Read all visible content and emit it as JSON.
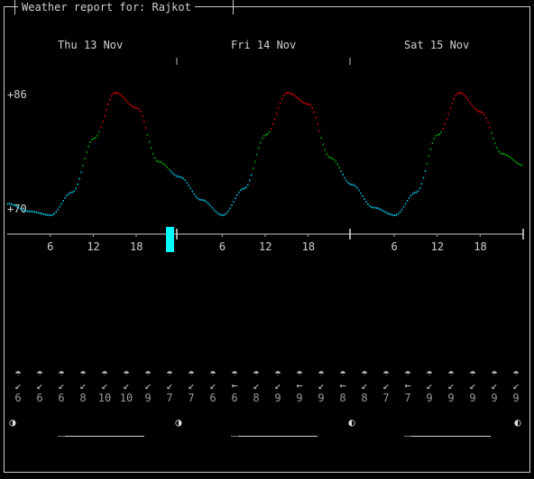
{
  "title": "Weather report for: Rajkot",
  "days": [
    "Thu 13 Nov",
    "Fri 14 Nov",
    "Sat 15 Nov"
  ],
  "temp_labels": {
    "max": "+86",
    "min": "+70"
  },
  "hour_ticks": [
    "6",
    "12",
    "18",
    "6",
    "12",
    "18",
    "6",
    "12",
    "18"
  ],
  "colors": {
    "hot": "#d00000",
    "warm": "#00a000",
    "cool": "#00b8d8",
    "now_marker": "#00ffff",
    "text": "#d0d0d0"
  },
  "chart_data": {
    "type": "line",
    "title": "",
    "xlabel": "",
    "ylabel": "",
    "ylim": [
      70,
      86
    ],
    "series": [
      {
        "name": "",
        "x_hours": [
          0,
          3,
          6,
          9,
          12,
          15,
          18,
          21,
          24,
          27,
          30,
          33,
          36,
          39,
          42,
          45,
          48,
          51,
          54,
          57,
          60,
          63,
          66,
          69,
          72
        ],
        "values": [
          71.5,
          70.5,
          70,
          73,
          80,
          86,
          84,
          77,
          75,
          72,
          70,
          73.5,
          80.5,
          86,
          84.5,
          77.5,
          74,
          71,
          70,
          73,
          80.5,
          86,
          83.5,
          78,
          76.5
        ]
      }
    ]
  },
  "wind": {
    "glyphs": [
      "↙",
      "↙",
      "↙",
      "↙",
      "↙",
      "↙",
      "↙",
      "↙",
      "↙",
      "↙",
      "←",
      "↙",
      "↙",
      "←",
      "↙",
      "←",
      "↙",
      "↙",
      "←",
      "↙",
      "↙",
      "↙",
      "↙",
      "↙"
    ],
    "speeds": [
      "6",
      "6",
      "6",
      "8",
      "10",
      "10",
      "9",
      "7",
      "7",
      "6",
      "6",
      "8",
      "9",
      "9",
      "9",
      "8",
      "8",
      "7",
      "7",
      "9",
      "9",
      "9",
      "9",
      "9"
    ]
  },
  "weather_glyphs": [
    "☂"
  ],
  "moon_glyphs": [
    "◑",
    "◑",
    "◐",
    "◐"
  ]
}
